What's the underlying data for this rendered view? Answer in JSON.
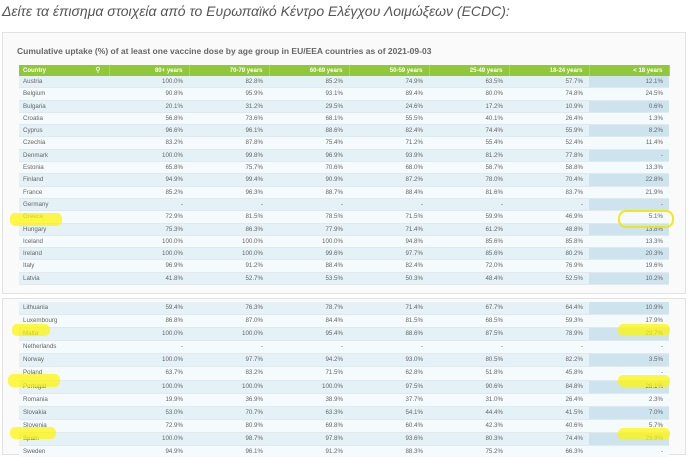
{
  "intro_text": "Δείτε τα έπισημα στοιχεία από το Ευρωπαϊκό Κέντρο Ελέγχου Λοιμώξεων (ECDC):",
  "table_title": "Cumulative uptake (%) of at least one vaccine dose by age group in EU/EEA countries as of 2021-09-03",
  "columns": [
    "Country",
    "80+ years",
    "70-79 years",
    "60-69 years",
    "50-59 years",
    "25-49 years",
    "18-24 years",
    "< 18 years"
  ],
  "search_icon": "search-icon",
  "colors": {
    "header": "#90c83a",
    "row_odd": "#e4f1f6",
    "row_even": "#f5fafc",
    "highlight": "#fff500"
  },
  "rows_part1": [
    [
      "Austria",
      "100.0%",
      "82.8%",
      "85.2%",
      "74.9%",
      "63.5%",
      "57.7%",
      "12.1%"
    ],
    [
      "Belgium",
      "90.8%",
      "95.9%",
      "93.1%",
      "89.4%",
      "80.0%",
      "74.8%",
      "24.5%"
    ],
    [
      "Bulgaria",
      "20.1%",
      "31.2%",
      "29.5%",
      "24.6%",
      "17.2%",
      "10.9%",
      "0.6%"
    ],
    [
      "Croatia",
      "56.8%",
      "73.6%",
      "68.1%",
      "55.5%",
      "40.1%",
      "26.4%",
      "1.3%"
    ],
    [
      "Cyprus",
      "96.6%",
      "96.1%",
      "88.6%",
      "82.4%",
      "74.4%",
      "55.9%",
      "8.2%"
    ],
    [
      "Czechia",
      "83.2%",
      "87.8%",
      "75.4%",
      "71.2%",
      "55.4%",
      "52.4%",
      "11.4%"
    ],
    [
      "Denmark",
      "100.0%",
      "99.8%",
      "96.9%",
      "93.9%",
      "81.2%",
      "77.8%",
      "-"
    ],
    [
      "Estonia",
      "65.8%",
      "75.7%",
      "70.6%",
      "68.0%",
      "58.7%",
      "58.8%",
      "13.3%"
    ],
    [
      "Finland",
      "94.9%",
      "99.4%",
      "90.9%",
      "87.2%",
      "78.0%",
      "70.4%",
      "22.8%"
    ],
    [
      "France",
      "85.2%",
      "96.3%",
      "88.7%",
      "88.4%",
      "81.6%",
      "83.7%",
      "21.9%"
    ],
    [
      "Germany",
      "-",
      "-",
      "-",
      "-",
      "-",
      "-",
      "-"
    ],
    [
      "Greece",
      "72.9%",
      "81.5%",
      "78.5%",
      "71.5%",
      "59.9%",
      "46.9%",
      "5.1%"
    ],
    [
      "Hungary",
      "75.3%",
      "86.3%",
      "77.9%",
      "71.4%",
      "61.2%",
      "48.8%",
      "13.8%"
    ],
    [
      "Iceland",
      "100.0%",
      "100.0%",
      "100.0%",
      "94.8%",
      "85.6%",
      "85.8%",
      "13.3%"
    ],
    [
      "Ireland",
      "100.0%",
      "100.0%",
      "99.6%",
      "97.7%",
      "85.6%",
      "80.2%",
      "20.3%"
    ],
    [
      "Italy",
      "96.9%",
      "91.2%",
      "88.4%",
      "82.4%",
      "72.0%",
      "76.9%",
      "19.6%"
    ],
    [
      "Latvia",
      "41.8%",
      "52.7%",
      "53.5%",
      "50.3%",
      "48.4%",
      "52.5%",
      "10.2%"
    ]
  ],
  "rows_part2": [
    [
      "Lithuania",
      "59.4%",
      "76.3%",
      "78.7%",
      "71.4%",
      "67.7%",
      "64.4%",
      "10.9%"
    ],
    [
      "Luxembourg",
      "86.8%",
      "87.0%",
      "84.4%",
      "81.5%",
      "68.5%",
      "59.3%",
      "17.9%"
    ],
    [
      "Malta",
      "100.0%",
      "100.0%",
      "95.4%",
      "88.6%",
      "87.5%",
      "78.9%",
      "23.7%"
    ],
    [
      "Netherlands",
      "-",
      "-",
      "-",
      "-",
      "-",
      "-",
      "-"
    ],
    [
      "Norway",
      "100.0%",
      "97.7%",
      "94.2%",
      "93.0%",
      "80.5%",
      "82.2%",
      "3.5%"
    ],
    [
      "Poland",
      "63.7%",
      "83.2%",
      "71.5%",
      "62.8%",
      "51.8%",
      "45.8%",
      "-"
    ],
    [
      "Portugal",
      "100.0%",
      "100.0%",
      "100.0%",
      "97.5%",
      "90.6%",
      "84.8%",
      "28.1%"
    ],
    [
      "Romania",
      "19.9%",
      "36.9%",
      "38.9%",
      "37.7%",
      "31.0%",
      "26.4%",
      "2.3%"
    ],
    [
      "Slovakia",
      "53.0%",
      "70.7%",
      "63.3%",
      "54.1%",
      "44.4%",
      "41.5%",
      "7.0%"
    ],
    [
      "Slovenia",
      "72.9%",
      "80.9%",
      "69.8%",
      "60.4%",
      "42.3%",
      "40.6%",
      "5.7%"
    ],
    [
      "Spain",
      "100.0%",
      "98.7%",
      "97.8%",
      "93.6%",
      "80.3%",
      "74.4%",
      "23.9%"
    ],
    [
      "Sweden",
      "94.9%",
      "96.1%",
      "91.2%",
      "88.3%",
      "75.2%",
      "66.3%",
      "-"
    ]
  ]
}
